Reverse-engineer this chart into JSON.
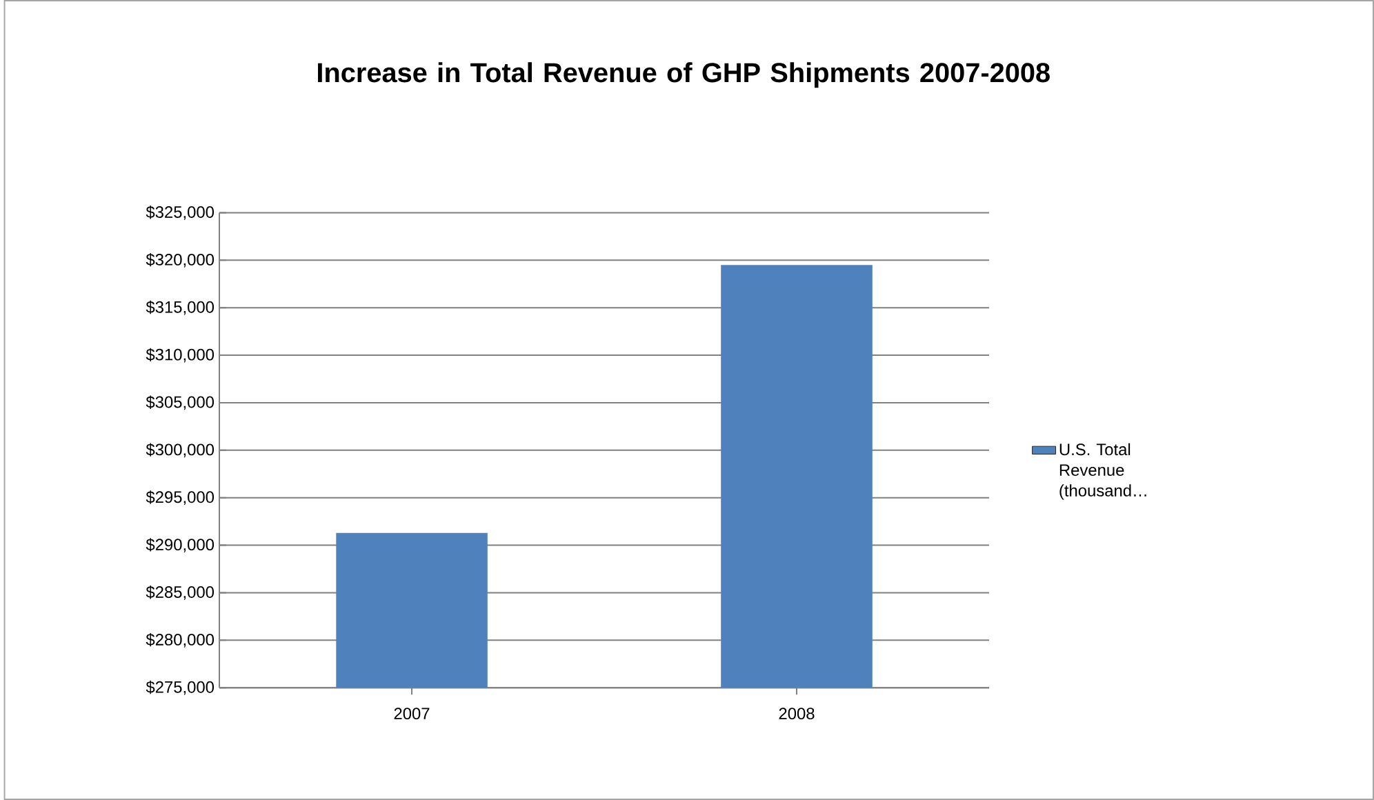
{
  "chart_data": {
    "type": "bar",
    "title": "Increase in Total Revenue of GHP Shipments 2007-2008",
    "categories": [
      "2007",
      "2008"
    ],
    "series": [
      {
        "name": "U.S. Total Revenue (thousand…",
        "color": "#4f81bd",
        "values": [
          291300,
          319500
        ]
      }
    ],
    "ylim": [
      275000,
      325000
    ],
    "yticks": [
      {
        "value": 275000,
        "label": "$275,000"
      },
      {
        "value": 280000,
        "label": "$280,000"
      },
      {
        "value": 285000,
        "label": "$285,000"
      },
      {
        "value": 290000,
        "label": "$290,000"
      },
      {
        "value": 295000,
        "label": "$295,000"
      },
      {
        "value": 300000,
        "label": "$300,000"
      },
      {
        "value": 305000,
        "label": "$305,000"
      },
      {
        "value": 310000,
        "label": "$310,000"
      },
      {
        "value": 315000,
        "label": "$315,000"
      },
      {
        "value": 320000,
        "label": "$320,000"
      },
      {
        "value": 325000,
        "label": "$325,000"
      }
    ],
    "grid": "y",
    "legend": "right"
  }
}
